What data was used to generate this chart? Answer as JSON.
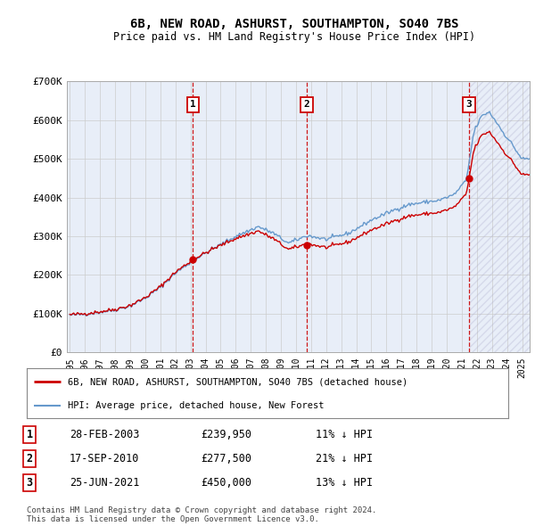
{
  "title_line1": "6B, NEW ROAD, ASHURST, SOUTHAMPTON, SO40 7BS",
  "title_line2": "Price paid vs. HM Land Registry's House Price Index (HPI)",
  "legend_line1": "6B, NEW ROAD, ASHURST, SOUTHAMPTON, SO40 7BS (detached house)",
  "legend_line2": "HPI: Average price, detached house, New Forest",
  "footnote1": "Contains HM Land Registry data © Crown copyright and database right 2024.",
  "footnote2": "This data is licensed under the Open Government Licence v3.0.",
  "sale_prices": [
    239950,
    277500,
    450000
  ],
  "sale_labels": [
    "1",
    "2",
    "3"
  ],
  "sale_date_labels": [
    "28-FEB-2003",
    "17-SEP-2010",
    "25-JUN-2021"
  ],
  "sale_price_labels": [
    "£239,950",
    "£277,500",
    "£450,000"
  ],
  "sale_pct_labels": [
    "11% ↓ HPI",
    "21% ↓ HPI",
    "13% ↓ HPI"
  ],
  "red_color": "#cc0000",
  "blue_color": "#6699cc",
  "background_color": "#e8eef8",
  "ylim": [
    0,
    700000
  ],
  "yticks": [
    0,
    100000,
    200000,
    300000,
    400000,
    500000,
    600000,
    700000
  ],
  "xstart_year": 1995,
  "xend_year": 2026,
  "hpi_waypoints_years": [
    1995.0,
    1996.0,
    1997.0,
    1998.0,
    1999.0,
    2000.0,
    2001.0,
    2002.0,
    2003.2,
    2004.5,
    2006.0,
    2007.5,
    2008.5,
    2009.5,
    2010.75,
    2012.0,
    2013.5,
    2015.0,
    2016.5,
    2017.5,
    2018.5,
    2019.5,
    2020.5,
    2021.3,
    2021.8,
    2022.3,
    2022.8,
    2023.3,
    2023.8,
    2024.3,
    2024.8,
    2025.0
  ],
  "hpi_waypoints_vals": [
    96000,
    99000,
    104000,
    110000,
    120000,
    140000,
    168000,
    205000,
    238000,
    268000,
    300000,
    325000,
    308000,
    282000,
    302000,
    292000,
    308000,
    342000,
    368000,
    382000,
    388000,
    393000,
    408000,
    445000,
    570000,
    610000,
    622000,
    595000,
    565000,
    540000,
    510000,
    500000
  ],
  "sale_year_floats": [
    2003.163,
    2010.708,
    2021.479
  ]
}
